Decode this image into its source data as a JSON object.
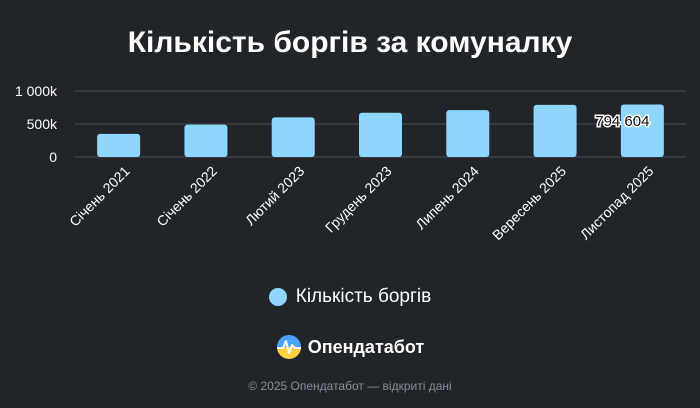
{
  "chart_data": {
    "type": "bar",
    "title": "Кількість боргів за комуналку",
    "categories": [
      "Січень 2021",
      "Січень 2022",
      "Лютий 2023",
      "Грудень 2023",
      "Липень 2024",
      "Вересень 2025",
      "Листопад 2025"
    ],
    "series": [
      {
        "name": "Кількість боргів",
        "values": [
          350000,
          490000,
          600000,
          670000,
          710000,
          790000,
          794604
        ],
        "color": "#8fd6ff"
      }
    ],
    "y_ticks": [
      {
        "value": 0,
        "label": "0"
      },
      {
        "value": 500000,
        "label": "500k"
      },
      {
        "value": 1000000,
        "label": "1 000k"
      }
    ],
    "ylim": [
      0,
      1000000
    ],
    "data_labels": [
      {
        "index": 6,
        "text": "794 604"
      }
    ],
    "grid": true,
    "legend_position": "bottom"
  },
  "brand": {
    "name": "Опендатабот",
    "logo_icon": "opendatabot-logo-icon"
  },
  "footer": {
    "text": "© 2025 Опендатабот — відкриті дані"
  }
}
